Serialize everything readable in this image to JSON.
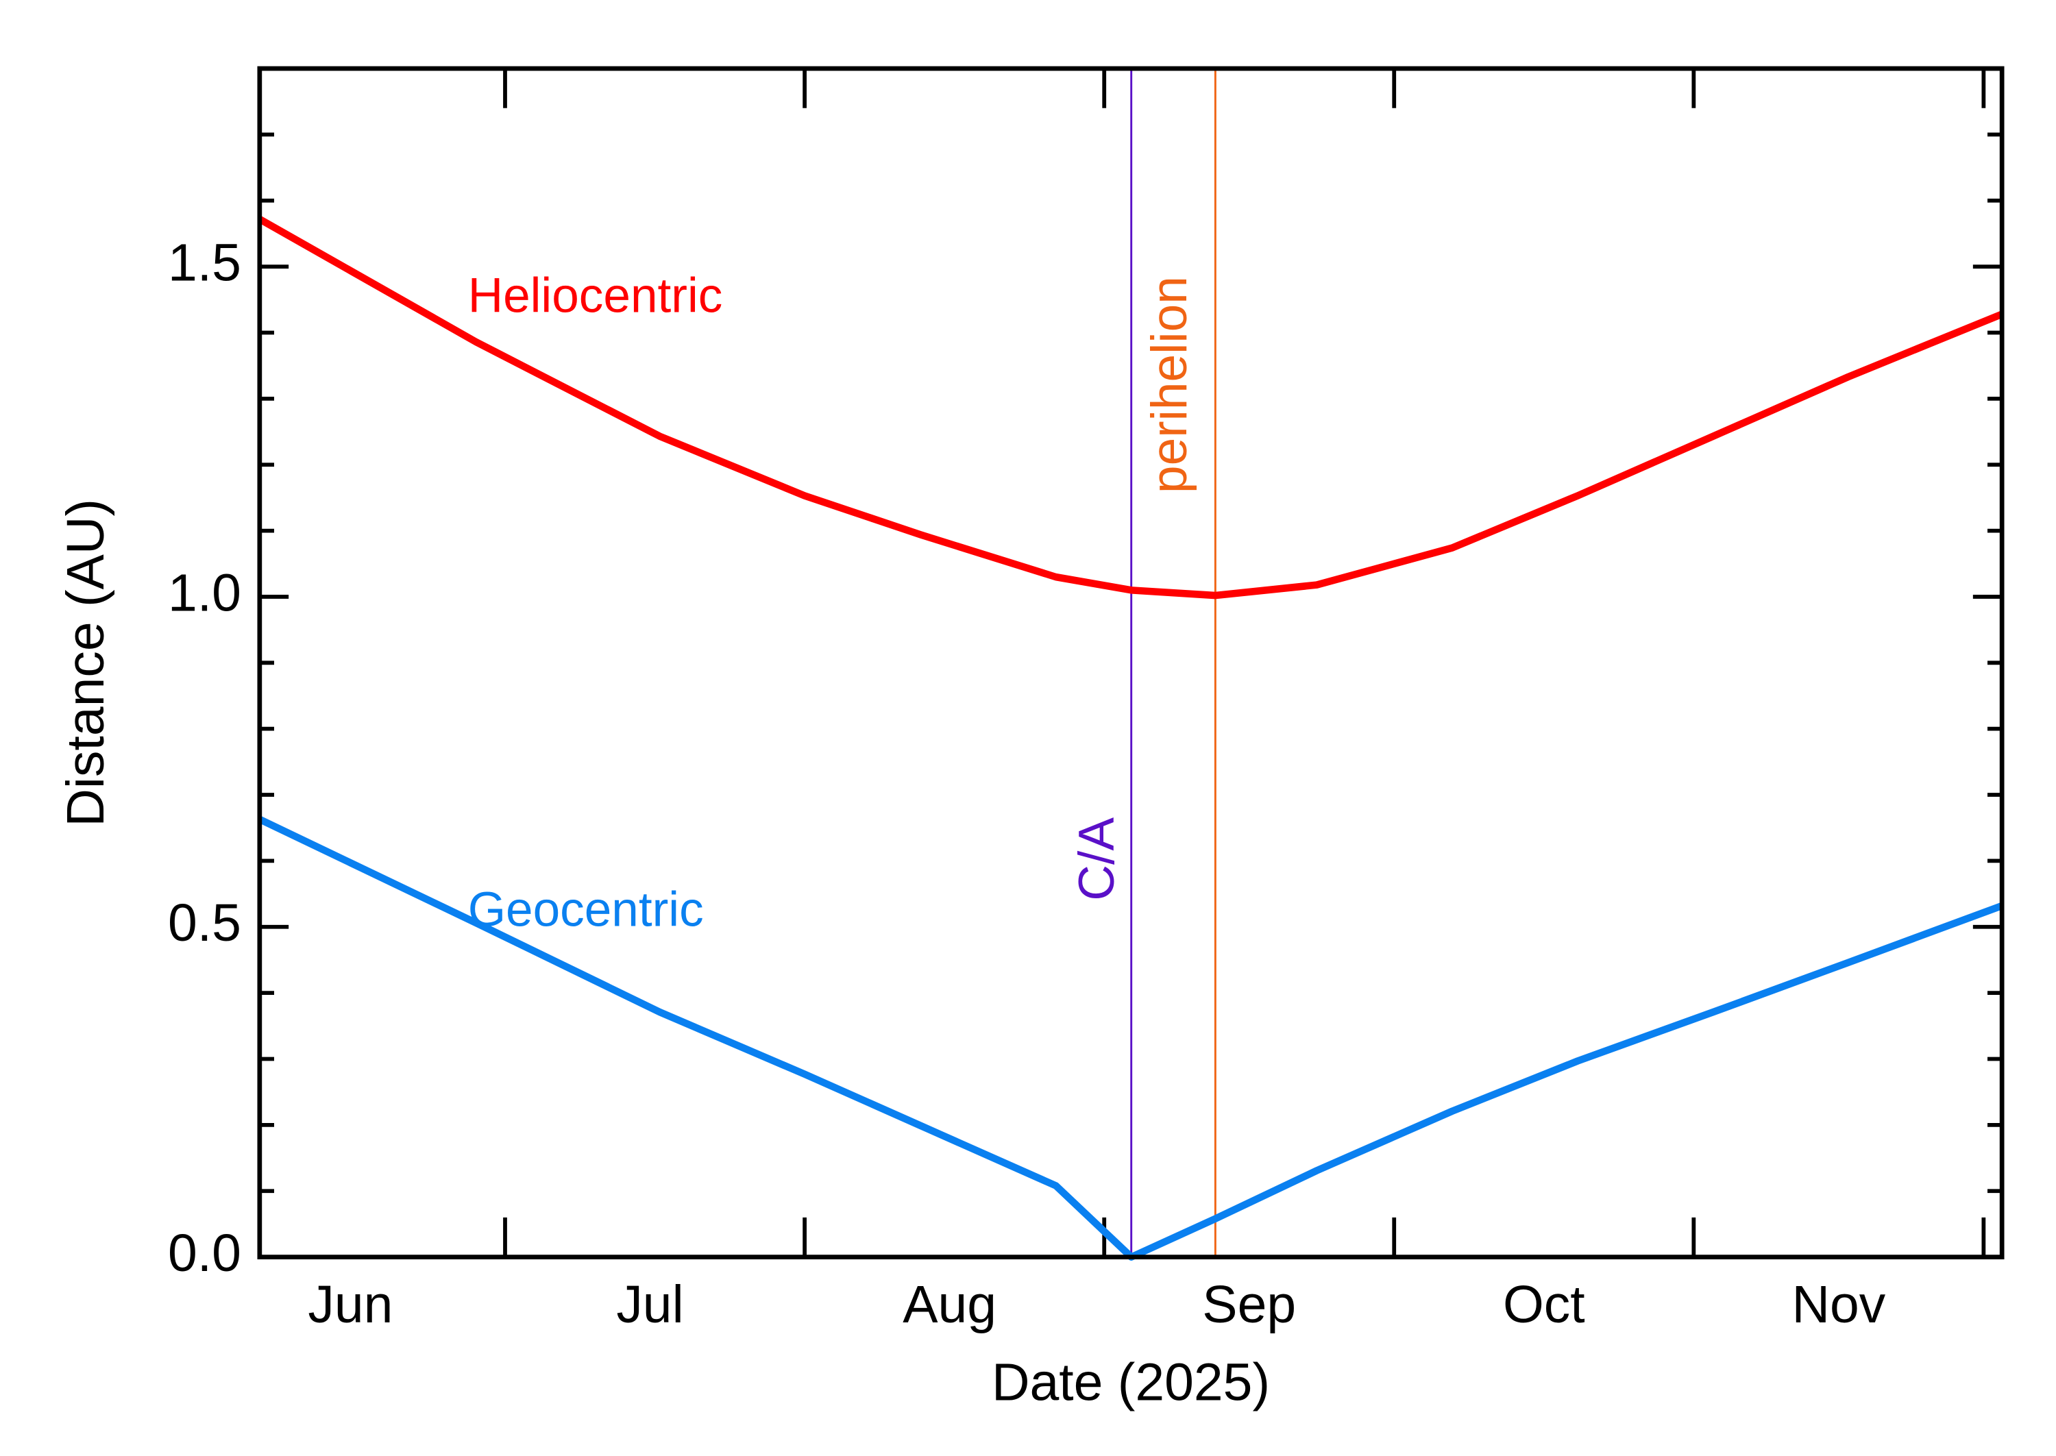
{
  "chart_data": {
    "type": "line",
    "x_axis_label": "Date (2025)",
    "y_axis_label": "Distance (AU)",
    "xlim": [
      156.6,
      336.9
    ],
    "ylim": [
      0,
      1.8
    ],
    "xticks": [
      182,
      213,
      244,
      274,
      305,
      335
    ],
    "xtick_labels": [
      {
        "value": 166,
        "label": "Jun"
      },
      {
        "value": 197,
        "label": "Jul"
      },
      {
        "value": 228,
        "label": "Aug"
      },
      {
        "value": 259,
        "label": "Sep"
      },
      {
        "value": 289.5,
        "label": "Oct"
      },
      {
        "value": 320,
        "label": "Nov"
      }
    ],
    "yticks": [
      {
        "value": 0,
        "label": "0.0"
      },
      0.5,
      {
        "value": 1,
        "label": "1.0"
      },
      1.5
    ],
    "yminorticks": [
      0.1,
      0.2,
      0.3,
      0.4,
      0.6,
      0.7,
      0.8,
      0.9,
      1.1,
      1.2,
      1.3,
      1.4,
      1.6,
      1.7
    ],
    "x": [
      156.6,
      179,
      198,
      213,
      225,
      239,
      246.8,
      255.5,
      266,
      280,
      293,
      307,
      321,
      336.9
    ],
    "series": [
      {
        "name": "Heliocentric",
        "color": "#ff0000",
        "values": [
          1.572,
          1.386,
          1.243,
          1.153,
          1.094,
          1.03,
          1.01,
          1.002,
          1.018,
          1.074,
          1.153,
          1.243,
          1.333,
          1.428
        ]
      },
      {
        "name": "Geocentric",
        "color": "#0a80f0",
        "values": [
          0.663,
          0.506,
          0.371,
          0.277,
          0.199,
          0.108,
          0.0,
          0.058,
          0.131,
          0.221,
          0.297,
          0.371,
          0.446,
          0.532
        ]
      }
    ],
    "markers": [
      {
        "x": 246.8,
        "label": "C/A",
        "color": "#5a10c8"
      },
      {
        "x": 255.5,
        "label": "perihelion",
        "color": "#f06414"
      }
    ]
  }
}
